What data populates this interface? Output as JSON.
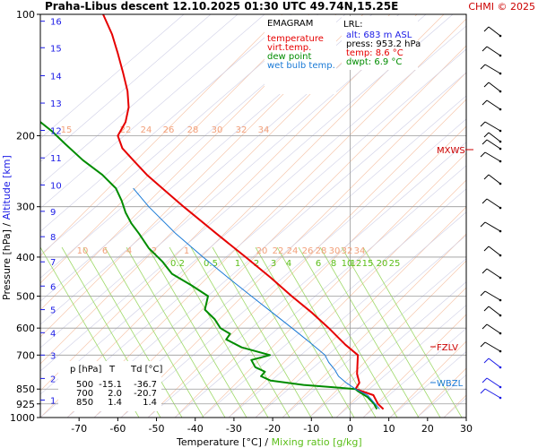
{
  "header": {
    "title": "Praha-Libus   descent   12.10.2025 01:30 UTC   49.74N,15.25E",
    "credit": "CHMI © 2025"
  },
  "legend": {
    "title": "EMAGRAM",
    "items": [
      {
        "label": "temperature",
        "color": "#e60000"
      },
      {
        "label": "virt.temp.",
        "color": "#e60000"
      },
      {
        "label": "dew point",
        "color": "#008c00"
      },
      {
        "label": "wet bulb temp.",
        "color": "#1a7ad6"
      }
    ]
  },
  "lrl": {
    "title": "LRL:",
    "alt": "alt: 683 m ASL",
    "press": "press: 953.2 hPa",
    "temp": "temp: 8.6 °C",
    "dwpt": "dwpt: 6.9 °C"
  },
  "table": {
    "headers": [
      "p [hPa]",
      "T",
      "Td [°C]"
    ],
    "rows": [
      [
        "500",
        "-15.1",
        "-36.7"
      ],
      [
        "700",
        "2.0",
        "-20.7"
      ],
      [
        "850",
        "1.4",
        "1.4"
      ]
    ]
  },
  "axes": {
    "xlabel": "Temperature [°C]  /",
    "xlabel2": "Mixing ratio [g/kg]",
    "ylabel": "Pressure [hPa]  /",
    "ylabel2": "Altitude [km]"
  },
  "levels": {
    "mxws": "MXWS",
    "fzlv": "FZLV",
    "wbzl": "WBZL"
  },
  "chart_data": {
    "type": "line",
    "ylog": true,
    "xlim": [
      -80,
      30
    ],
    "ylim": [
      1000,
      100
    ],
    "x_ticks": [
      -70,
      -60,
      -50,
      -40,
      -30,
      -20,
      -10,
      0,
      10,
      20,
      30
    ],
    "p_ticks": [
      100,
      200,
      300,
      400,
      500,
      600,
      700,
      850,
      925,
      1000
    ],
    "alt_ticks": [
      {
        "km": 1,
        "p": 905
      },
      {
        "km": 2,
        "p": 800
      },
      {
        "km": 3,
        "p": 700
      },
      {
        "km": 4,
        "p": 616
      },
      {
        "km": 5,
        "p": 540
      },
      {
        "km": 6,
        "p": 472
      },
      {
        "km": 7,
        "p": 411
      },
      {
        "km": 8,
        "p": 356
      },
      {
        "km": 9,
        "p": 308
      },
      {
        "km": 10,
        "p": 265
      },
      {
        "km": 11,
        "p": 227
      },
      {
        "km": 12,
        "p": 194
      },
      {
        "km": 13,
        "p": 166
      },
      {
        "km": 14,
        "p": 142
      },
      {
        "km": 15,
        "p": 121
      },
      {
        "km": 16,
        "p": 104
      }
    ],
    "mix_labels_low": [
      "0.2",
      "0.5",
      "1",
      "2",
      "3",
      "4",
      "6",
      "8",
      "10",
      "12",
      "15",
      "20",
      "25"
    ],
    "mix_labels_mid": [
      "10",
      "6",
      "4",
      "2",
      "1",
      "20",
      "22",
      "24",
      "26",
      "28",
      "30",
      "32",
      "34"
    ],
    "mix_labels_top": [
      "15",
      "22",
      "24",
      "26",
      "28",
      "30",
      "32",
      "34"
    ],
    "series": [
      {
        "name": "temperature",
        "color": "#e60000",
        "points": [
          [
            953,
            8.6
          ],
          [
            925,
            7.2
          ],
          [
            880,
            6.0
          ],
          [
            850,
            1.4
          ],
          [
            820,
            2.4
          ],
          [
            780,
            1.8
          ],
          [
            700,
            2.0
          ],
          [
            660,
            -1.2
          ],
          [
            600,
            -5.5
          ],
          [
            550,
            -9.8
          ],
          [
            500,
            -15.1
          ],
          [
            450,
            -20.5
          ],
          [
            400,
            -27.0
          ],
          [
            350,
            -34.5
          ],
          [
            300,
            -43.0
          ],
          [
            270,
            -48.5
          ],
          [
            250,
            -52.5
          ],
          [
            230,
            -56.0
          ],
          [
            215,
            -58.8
          ],
          [
            200,
            -60.0
          ],
          [
            185,
            -58.0
          ],
          [
            170,
            -57.2
          ],
          [
            155,
            -57.5
          ],
          [
            140,
            -58.6
          ],
          [
            125,
            -60.0
          ],
          [
            112,
            -61.5
          ],
          [
            100,
            -63.8
          ]
        ]
      },
      {
        "name": "dew point",
        "color": "#008c00",
        "points": [
          [
            953,
            6.9
          ],
          [
            925,
            6.2
          ],
          [
            890,
            4.5
          ],
          [
            860,
            2.0
          ],
          [
            850,
            1.4
          ],
          [
            830,
            -12.0
          ],
          [
            810,
            -20.5
          ],
          [
            790,
            -23.0
          ],
          [
            770,
            -22.0
          ],
          [
            750,
            -24.5
          ],
          [
            720,
            -25.5
          ],
          [
            700,
            -20.7
          ],
          [
            670,
            -28.0
          ],
          [
            640,
            -32.0
          ],
          [
            620,
            -31.0
          ],
          [
            600,
            -33.5
          ],
          [
            570,
            -35.0
          ],
          [
            540,
            -37.5
          ],
          [
            500,
            -36.7
          ],
          [
            470,
            -41.0
          ],
          [
            440,
            -46.0
          ],
          [
            410,
            -48.5
          ],
          [
            380,
            -52.0
          ],
          [
            350,
            -54.5
          ],
          [
            330,
            -56.5
          ],
          [
            310,
            -58.0
          ],
          [
            290,
            -59.0
          ],
          [
            270,
            -60.5
          ],
          [
            250,
            -64.0
          ],
          [
            230,
            -69.0
          ],
          [
            210,
            -73.5
          ],
          [
            195,
            -77.0
          ],
          [
            185,
            -80.0
          ]
        ]
      },
      {
        "name": "wet bulb temp.",
        "color": "#1a7ad6",
        "points": [
          [
            953,
            7.6
          ],
          [
            925,
            6.5
          ],
          [
            880,
            4.5
          ],
          [
            850,
            1.4
          ],
          [
            820,
            -1.0
          ],
          [
            790,
            -3.0
          ],
          [
            760,
            -4.0
          ],
          [
            730,
            -5.5
          ],
          [
            700,
            -6.5
          ],
          [
            650,
            -10.5
          ],
          [
            600,
            -15.0
          ],
          [
            550,
            -20.0
          ],
          [
            500,
            -25.5
          ],
          [
            450,
            -31.5
          ],
          [
            400,
            -38.0
          ],
          [
            350,
            -45.0
          ],
          [
            300,
            -52.0
          ],
          [
            270,
            -56.0
          ]
        ]
      }
    ]
  }
}
